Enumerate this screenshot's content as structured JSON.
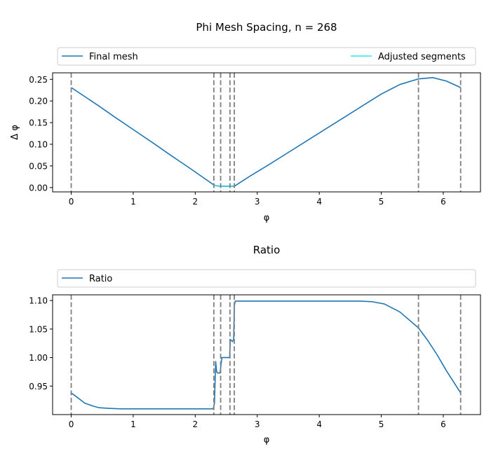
{
  "chart_data": [
    {
      "type": "line",
      "title": "Phi Mesh Spacing, n = 268",
      "xlabel": "φ",
      "ylabel": "Δ φ",
      "xlim": [
        -0.3,
        6.6
      ],
      "ylim": [
        -0.01,
        0.265
      ],
      "xticks": [
        0,
        1,
        2,
        3,
        4,
        5,
        6
      ],
      "yticks": [
        0.0,
        0.05,
        0.1,
        0.15,
        0.2,
        0.25
      ],
      "ytick_labels": [
        "0.00",
        "0.05",
        "0.10",
        "0.15",
        "0.20",
        "0.25"
      ],
      "grid": false,
      "legend": {
        "placement": "top, above axes",
        "entries": [
          {
            "label": "Final mesh",
            "color": "#1f77b4"
          },
          {
            "label": "Adjusted segments",
            "color": "#00e5ee"
          }
        ]
      },
      "vertical_lines": [
        0.0,
        2.3,
        2.41,
        2.56,
        2.63,
        5.6,
        6.28
      ],
      "vertical_line_color": "#808080",
      "series": [
        {
          "name": "Final mesh",
          "color": "#1f77b4",
          "x": [
            0.0,
            0.2,
            0.45,
            0.7,
            1.0,
            1.3,
            1.6,
            1.9,
            2.1,
            2.3,
            2.35,
            2.41,
            2.5,
            2.56,
            2.63,
            2.9,
            3.2,
            3.5,
            3.8,
            4.1,
            4.4,
            4.7,
            5.0,
            5.3,
            5.6,
            5.83,
            6.05,
            6.28
          ],
          "y": [
            0.231,
            0.212,
            0.188,
            0.163,
            0.134,
            0.105,
            0.075,
            0.046,
            0.026,
            0.006,
            0.004,
            0.003,
            0.003,
            0.003,
            0.003,
            0.028,
            0.054,
            0.081,
            0.108,
            0.135,
            0.162,
            0.189,
            0.216,
            0.238,
            0.251,
            0.254,
            0.246,
            0.231
          ]
        },
        {
          "name": "Adjusted segments",
          "color": "#00e5ee",
          "x": [
            2.3,
            2.35,
            2.41,
            2.5,
            2.56,
            2.63
          ],
          "y": [
            0.006,
            0.004,
            0.003,
            0.003,
            0.003,
            0.003
          ]
        }
      ]
    },
    {
      "type": "line",
      "title": "Ratio",
      "xlabel": "φ",
      "ylabel": "",
      "xlim": [
        -0.3,
        6.6
      ],
      "ylim": [
        0.9,
        1.11
      ],
      "xticks": [
        0,
        1,
        2,
        3,
        4,
        5,
        6
      ],
      "yticks": [
        0.95,
        1.0,
        1.05,
        1.1
      ],
      "ytick_labels": [
        "0.95",
        "1.00",
        "1.05",
        "1.10"
      ],
      "grid": false,
      "legend": {
        "placement": "top, above axes",
        "entries": [
          {
            "label": "Ratio",
            "color": "#1f77b4"
          }
        ]
      },
      "vertical_lines": [
        0.0,
        2.3,
        2.41,
        2.56,
        2.63,
        5.6,
        6.28
      ],
      "vertical_line_color": "#808080",
      "series": [
        {
          "name": "Ratio",
          "color": "#1f77b4",
          "x": [
            0.0,
            0.1,
            0.22,
            0.35,
            0.45,
            0.6,
            0.8,
            1.0,
            1.5,
            2.0,
            2.29,
            2.31,
            2.33,
            2.345,
            2.36,
            2.4,
            2.43,
            2.45,
            2.5,
            2.555,
            2.565,
            2.6,
            2.62,
            2.63,
            2.645,
            2.66,
            2.7,
            3.0,
            3.5,
            4.0,
            4.5,
            4.65,
            4.85,
            5.05,
            5.3,
            5.6,
            5.75,
            5.9,
            6.05,
            6.28
          ],
          "y": [
            0.938,
            0.93,
            0.92,
            0.915,
            0.912,
            0.911,
            0.91,
            0.91,
            0.91,
            0.91,
            0.91,
            0.92,
            0.993,
            0.975,
            0.973,
            0.973,
            1.0,
            1.0,
            1.0,
            1.0,
            1.032,
            1.028,
            1.032,
            1.09,
            1.099,
            1.099,
            1.099,
            1.099,
            1.099,
            1.099,
            1.099,
            1.099,
            1.098,
            1.094,
            1.08,
            1.052,
            1.03,
            1.005,
            0.977,
            0.938
          ]
        }
      ]
    }
  ]
}
